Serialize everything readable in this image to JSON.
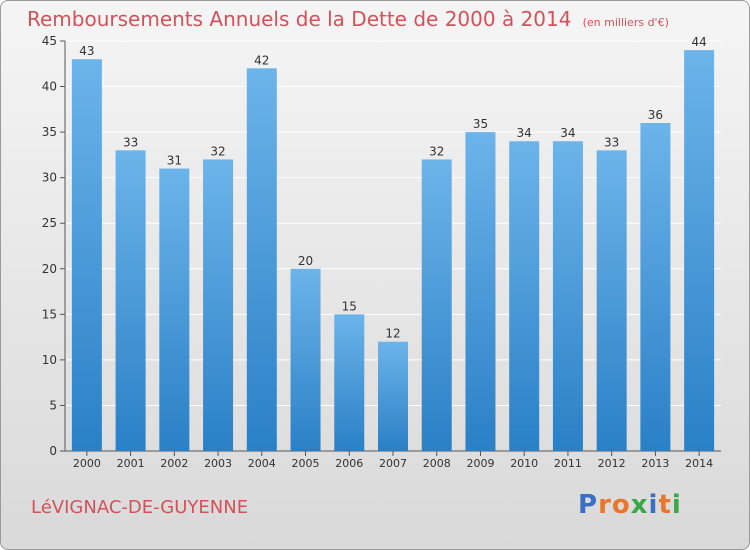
{
  "header": {
    "title": "Remboursements Annuels de la Dette de 2000 à 2014",
    "unit": "(en milliers d'€)"
  },
  "footer": {
    "commune": "LéVIGNAC-DE-GUYENNE",
    "logo": "Proxiti",
    "logo_colors": [
      "#3a6fc4",
      "#e8762d",
      "#e8762d",
      "#3aa84a",
      "#3a6fc4",
      "#e8762d",
      "#3aa84a"
    ]
  },
  "colors": {
    "bar_light": "#6cb4ea",
    "bar_dark": "#2a80c6",
    "grid": "#ffffff",
    "title": "#d2525a"
  },
  "chart_data": {
    "type": "bar",
    "title": "Remboursements Annuels de la Dette de 2000 à 2014",
    "xlabel": "",
    "ylabel": "",
    "categories": [
      "2000",
      "2001",
      "2002",
      "2003",
      "2004",
      "2005",
      "2006",
      "2007",
      "2008",
      "2009",
      "2010",
      "2011",
      "2012",
      "2013",
      "2014"
    ],
    "values": [
      43,
      33,
      31,
      32,
      42,
      20,
      15,
      12,
      32,
      35,
      34,
      34,
      33,
      36,
      44
    ],
    "ylim": [
      0,
      45
    ],
    "yticks": [
      0,
      5,
      10,
      15,
      20,
      25,
      30,
      35,
      40,
      45
    ],
    "grid": true,
    "data_labels": true
  }
}
